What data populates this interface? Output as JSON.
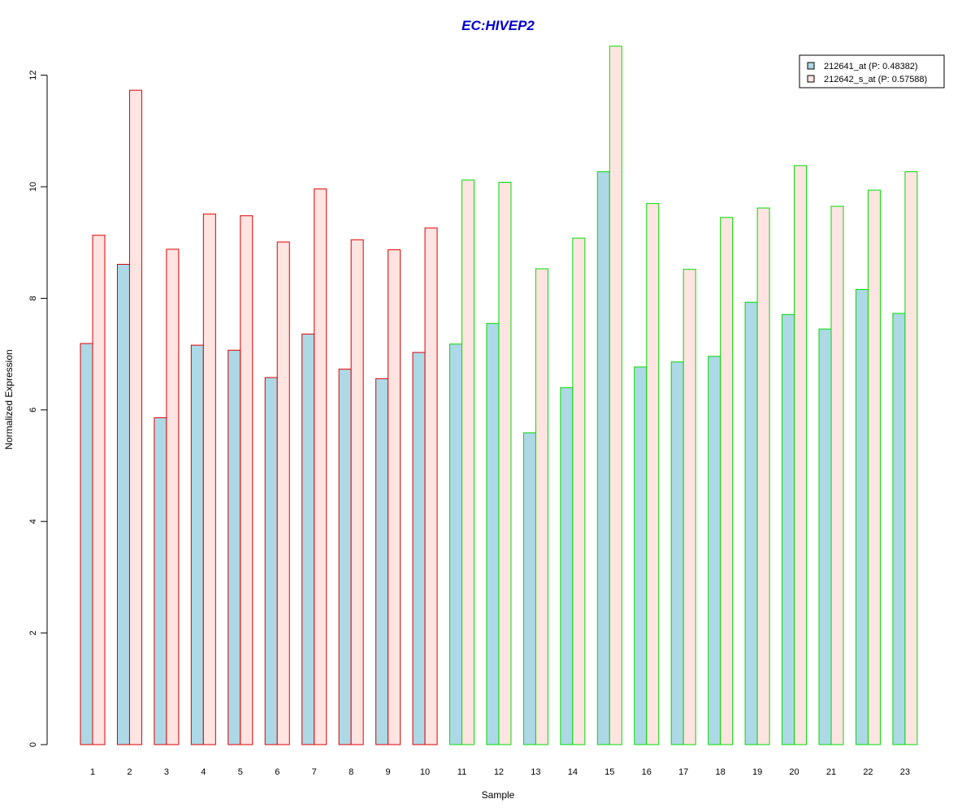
{
  "chart_data": {
    "type": "bar",
    "title": "EC:HIVEP2",
    "xlabel": "Sample",
    "ylabel": "Normalized Expression",
    "ylim": [
      0,
      12.5
    ],
    "yticks": [
      "0",
      "2",
      "4",
      "6",
      "8",
      "10",
      "12"
    ],
    "grid": false,
    "legend_position": "top-right",
    "categories": [
      "1",
      "2",
      "3",
      "4",
      "5",
      "6",
      "7",
      "8",
      "9",
      "10",
      "11",
      "12",
      "13",
      "14",
      "15",
      "16",
      "17",
      "18",
      "19",
      "20",
      "21",
      "22",
      "23"
    ],
    "series": [
      {
        "name": "212641_at (P: 0.48382)",
        "fill": "#add8e6",
        "values": [
          7.19,
          8.61,
          5.86,
          7.16,
          7.07,
          6.58,
          7.36,
          6.73,
          6.56,
          7.03,
          7.18,
          7.55,
          5.59,
          6.4,
          10.27,
          6.77,
          6.86,
          6.96,
          7.93,
          7.71,
          7.45,
          8.16,
          7.73
        ]
      },
      {
        "name": "212642_s_at (P: 0.57588)",
        "fill": "#ffe4e1",
        "values": [
          9.13,
          11.73,
          8.88,
          9.51,
          9.48,
          9.01,
          9.96,
          9.05,
          8.87,
          9.26,
          10.12,
          10.08,
          8.53,
          9.08,
          12.52,
          9.7,
          8.52,
          9.45,
          9.62,
          10.38,
          9.65,
          9.94,
          10.27
        ]
      }
    ],
    "border_colors": [
      "#dd0000",
      "#dd0000",
      "#dd0000",
      "#dd0000",
      "#dd0000",
      "#dd0000",
      "#dd0000",
      "#dd0000",
      "#dd0000",
      "#dd0000",
      "#00dd00",
      "#00dd00",
      "#00dd00",
      "#00dd00",
      "#00dd00",
      "#00dd00",
      "#00dd00",
      "#00dd00",
      "#00dd00",
      "#00dd00",
      "#00dd00",
      "#00dd00",
      "#00dd00"
    ],
    "title_color": "#0000cc"
  }
}
